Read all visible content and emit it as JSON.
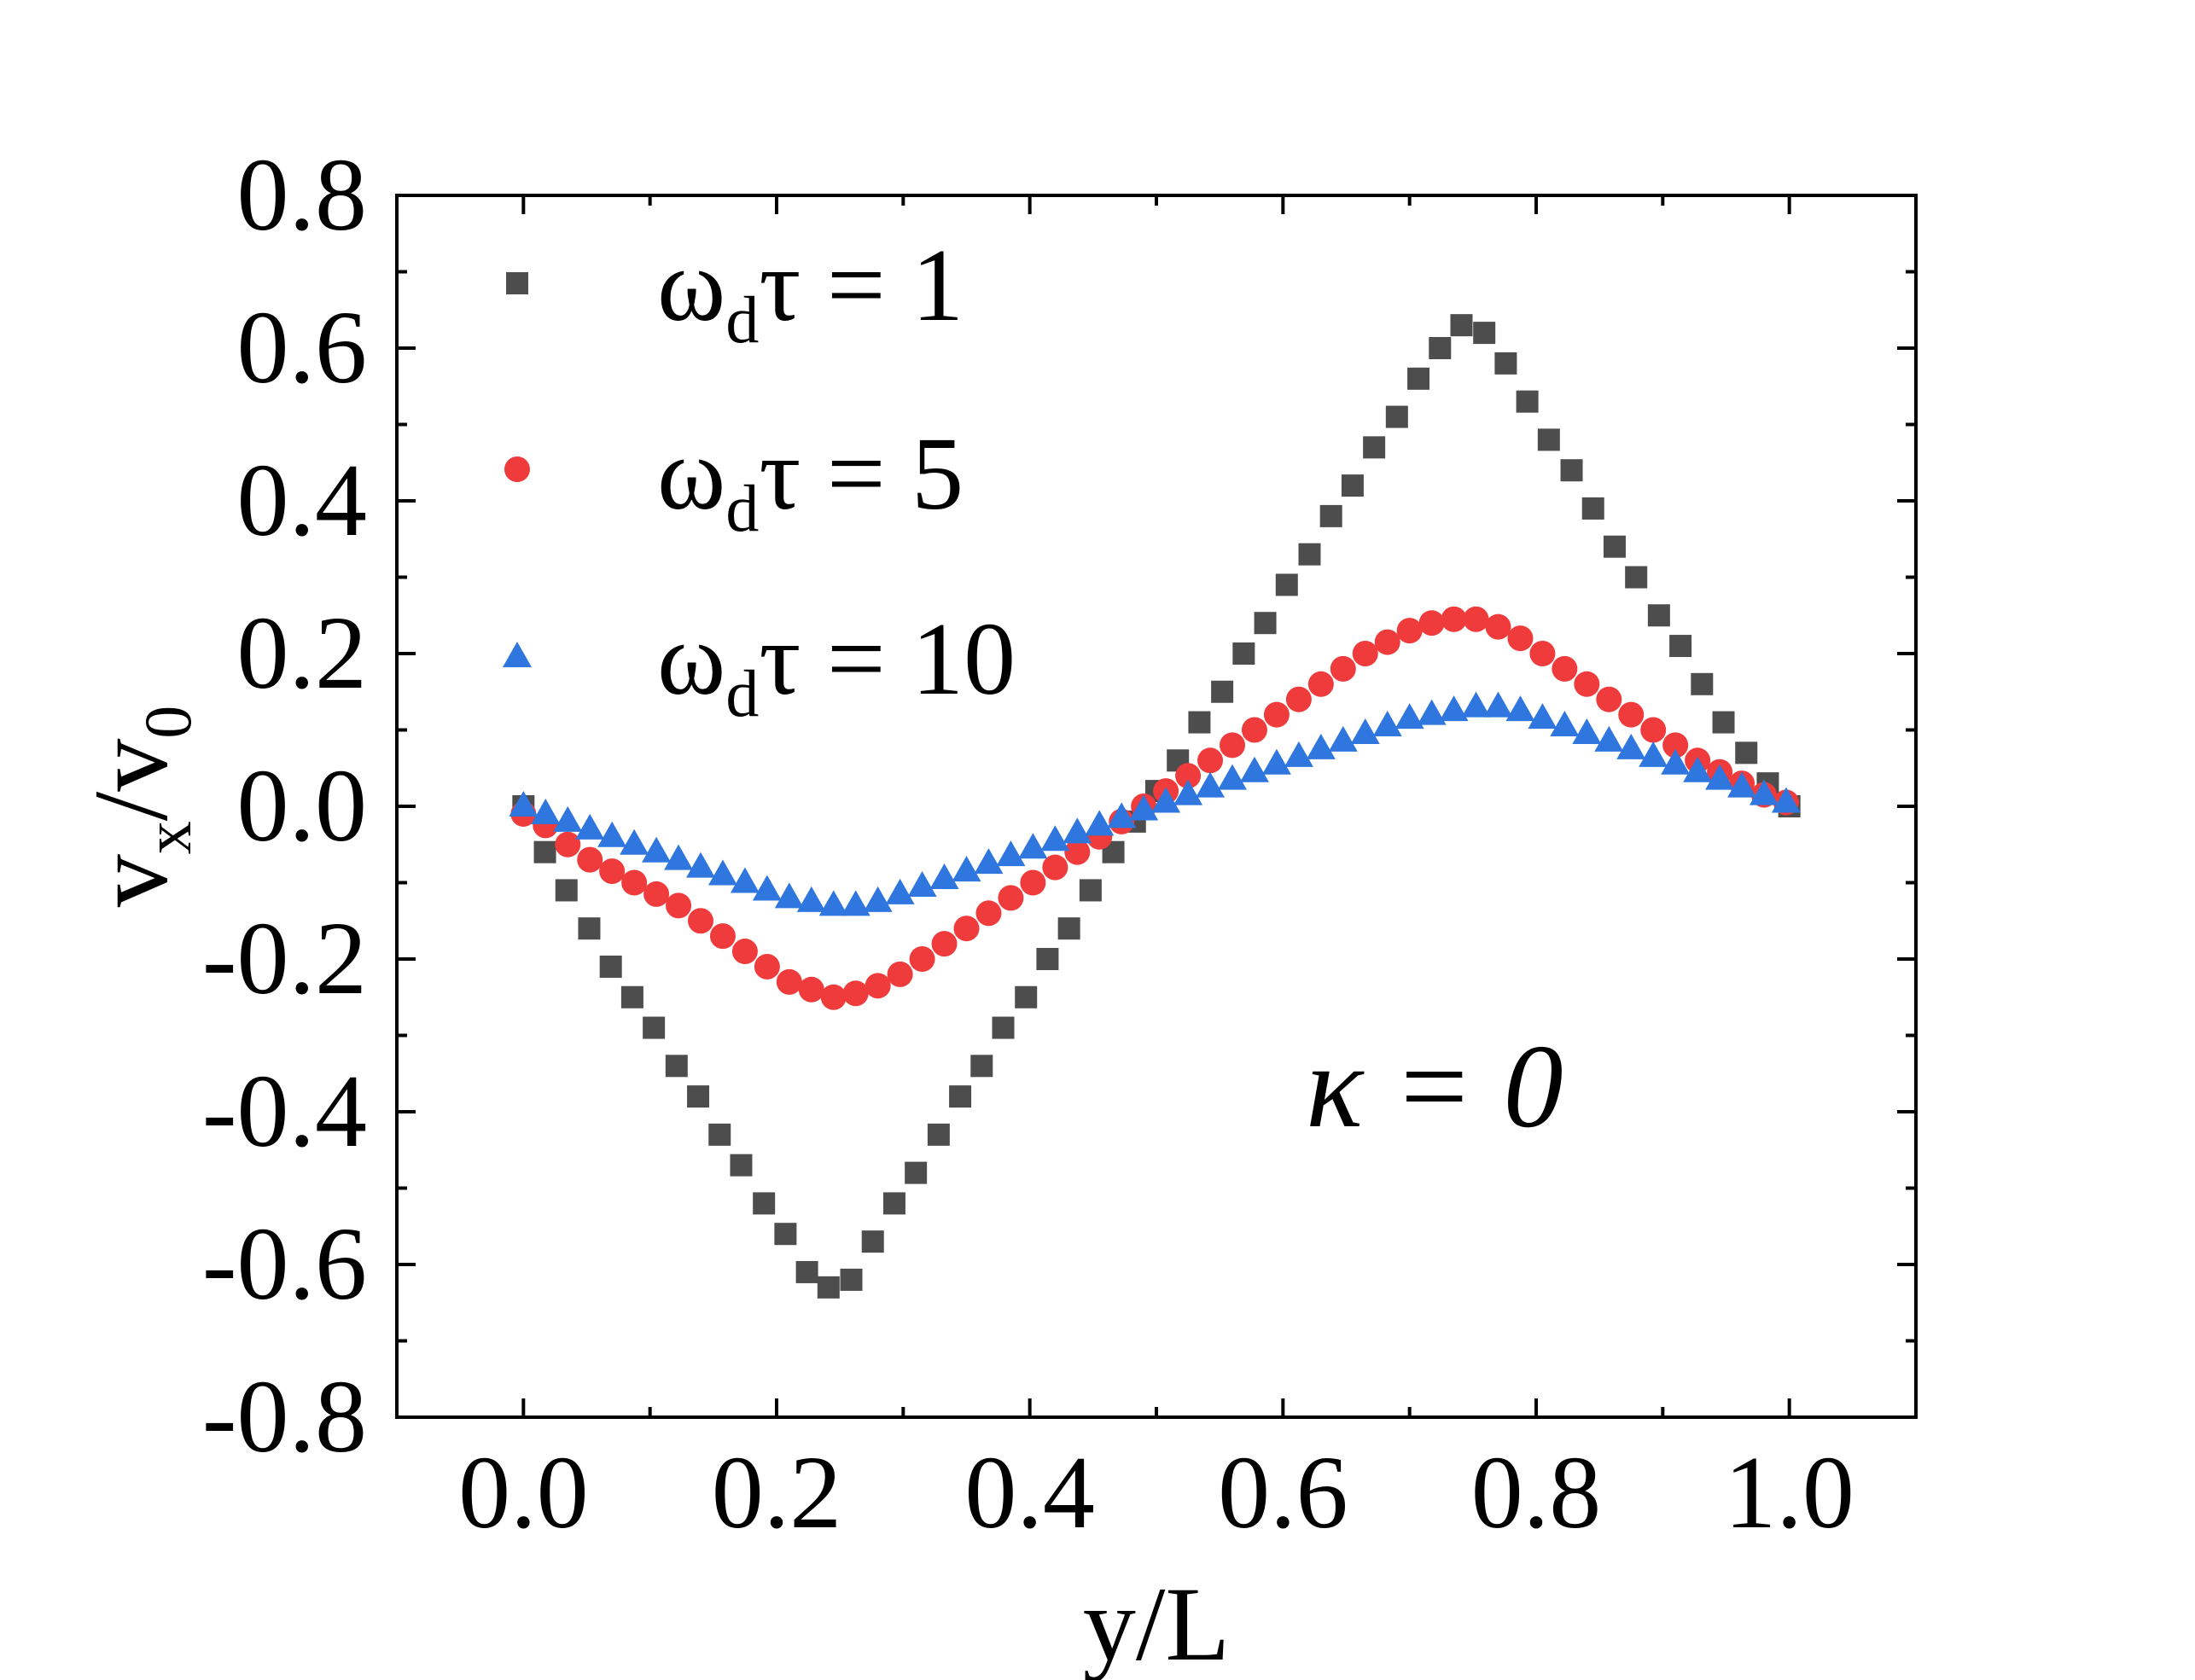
{
  "chart_data": {
    "type": "scatter",
    "title": "",
    "xlabel": "y/L",
    "ylabel": "v_x/v_0",
    "ylabel_parts": {
      "v1": "v",
      "sub1": "x",
      "slash": "/",
      "v2": "v",
      "sub2": "0"
    },
    "xlim": [
      -0.1,
      1.1
    ],
    "ylim": [
      -0.8,
      0.8
    ],
    "xticks": [
      "0.0",
      "0.2",
      "0.4",
      "0.6",
      "0.8",
      "1.0"
    ],
    "xtick_values": [
      0.0,
      0.2,
      0.4,
      0.6,
      0.8,
      1.0
    ],
    "yticks": [
      "0.8",
      "0.6",
      "0.4",
      "0.2",
      "0.0",
      "-0.2",
      "-0.4",
      "-0.6",
      "-0.8"
    ],
    "ytick_values": [
      0.8,
      0.6,
      0.4,
      0.2,
      0.0,
      -0.2,
      -0.4,
      -0.6,
      -0.8
    ],
    "grid": false,
    "legend_position": "top-left",
    "annotation": "κ = 0",
    "x": [
      0.0,
      0.0175,
      0.035,
      0.0525,
      0.07,
      0.0875,
      0.105,
      0.1225,
      0.14,
      0.1575,
      0.175,
      0.1925,
      0.21,
      0.2275,
      0.245,
      0.2625,
      0.28,
      0.2975,
      0.315,
      0.3325,
      0.35,
      0.3675,
      0.385,
      0.4025,
      0.42,
      0.4375,
      0.455,
      0.4725,
      0.49,
      0.5075,
      0.525,
      0.5425,
      0.56,
      0.5775,
      0.595,
      0.6125,
      0.63,
      0.6475,
      0.665,
      0.6825,
      0.7,
      0.7175,
      0.735,
      0.7525,
      0.77,
      0.7875,
      0.805,
      0.8225,
      0.84,
      0.8575,
      0.875,
      0.8925,
      0.91,
      0.9275,
      0.945,
      0.9625,
      0.98,
      0.9975
    ],
    "series": [
      {
        "name": "ω_dτ = 1",
        "label_parts": {
          "omega": "ω",
          "sub": "d",
          "rest": "τ = 1"
        },
        "marker": "square",
        "color": "#4d4d4d",
        "x": [
          0.0,
          0.017,
          0.034,
          0.052,
          0.069,
          0.086,
          0.103,
          0.121,
          0.138,
          0.155,
          0.172,
          0.19,
          0.207,
          0.224,
          0.241,
          0.259,
          0.276,
          0.293,
          0.31,
          0.328,
          0.345,
          0.362,
          0.379,
          0.397,
          0.414,
          0.431,
          0.448,
          0.466,
          0.483,
          0.5,
          0.517,
          0.534,
          0.552,
          0.569,
          0.586,
          0.603,
          0.621,
          0.638,
          0.655,
          0.672,
          0.69,
          0.707,
          0.724,
          0.741,
          0.759,
          0.776,
          0.793,
          0.81,
          0.828,
          0.845,
          0.862,
          0.879,
          0.897,
          0.914,
          0.931,
          0.948,
          0.966,
          0.983,
          1.0
        ],
        "values": [
          0.0,
          -0.06,
          -0.11,
          -0.16,
          -0.21,
          -0.25,
          -0.29,
          -0.34,
          -0.38,
          -0.43,
          -0.47,
          -0.52,
          -0.56,
          -0.61,
          -0.63,
          -0.62,
          -0.57,
          -0.52,
          -0.48,
          -0.43,
          -0.38,
          -0.34,
          -0.29,
          -0.25,
          -0.2,
          -0.16,
          -0.11,
          -0.06,
          -0.02,
          0.02,
          0.06,
          0.11,
          0.15,
          0.2,
          0.24,
          0.29,
          0.33,
          0.38,
          0.42,
          0.47,
          0.51,
          0.56,
          0.6,
          0.63,
          0.62,
          0.58,
          0.53,
          0.48,
          0.44,
          0.39,
          0.34,
          0.3,
          0.25,
          0.21,
          0.16,
          0.11,
          0.07,
          0.03,
          0.0
        ]
      },
      {
        "name": "ω_dτ = 5",
        "label_parts": {
          "omega": "ω",
          "sub": "d",
          "rest": "τ = 5"
        },
        "marker": "circle",
        "color": "#ef3b3b",
        "x": [
          0.0,
          0.0175,
          0.035,
          0.0525,
          0.07,
          0.0875,
          0.105,
          0.1225,
          0.14,
          0.1575,
          0.175,
          0.1925,
          0.21,
          0.2275,
          0.245,
          0.2625,
          0.28,
          0.2975,
          0.315,
          0.3325,
          0.35,
          0.3675,
          0.385,
          0.4025,
          0.42,
          0.4375,
          0.455,
          0.4725,
          0.49,
          0.5075,
          0.525,
          0.5425,
          0.56,
          0.5775,
          0.595,
          0.6125,
          0.63,
          0.6475,
          0.665,
          0.6825,
          0.7,
          0.7175,
          0.735,
          0.7525,
          0.77,
          0.7875,
          0.805,
          0.8225,
          0.84,
          0.8575,
          0.875,
          0.8925,
          0.91,
          0.9275,
          0.945,
          0.9625,
          0.98,
          0.9975
        ],
        "values": [
          -0.01,
          -0.025,
          -0.05,
          -0.07,
          -0.085,
          -0.1,
          -0.115,
          -0.13,
          -0.15,
          -0.17,
          -0.19,
          -0.21,
          -0.23,
          -0.24,
          -0.25,
          -0.245,
          -0.235,
          -0.22,
          -0.2,
          -0.18,
          -0.16,
          -0.14,
          -0.12,
          -0.1,
          -0.08,
          -0.06,
          -0.04,
          -0.02,
          0.0,
          0.02,
          0.04,
          0.06,
          0.08,
          0.1,
          0.12,
          0.14,
          0.16,
          0.18,
          0.2,
          0.215,
          0.23,
          0.24,
          0.245,
          0.245,
          0.235,
          0.22,
          0.2,
          0.18,
          0.16,
          0.14,
          0.12,
          0.1,
          0.08,
          0.06,
          0.045,
          0.03,
          0.015,
          0.005
        ]
      },
      {
        "name": "ω_dτ = 10",
        "label_parts": {
          "omega": "ω",
          "sub": "d",
          "rest": "τ = 10"
        },
        "marker": "triangle",
        "color": "#2f76de",
        "x": [
          0.0,
          0.0175,
          0.035,
          0.0525,
          0.07,
          0.0875,
          0.105,
          0.1225,
          0.14,
          0.1575,
          0.175,
          0.1925,
          0.21,
          0.2275,
          0.245,
          0.2625,
          0.28,
          0.2975,
          0.315,
          0.3325,
          0.35,
          0.3675,
          0.385,
          0.4025,
          0.42,
          0.4375,
          0.455,
          0.4725,
          0.49,
          0.5075,
          0.525,
          0.5425,
          0.56,
          0.5775,
          0.595,
          0.6125,
          0.63,
          0.6475,
          0.665,
          0.6825,
          0.7,
          0.7175,
          0.735,
          0.7525,
          0.77,
          0.7875,
          0.805,
          0.8225,
          0.84,
          0.8575,
          0.875,
          0.8925,
          0.91,
          0.9275,
          0.945,
          0.9625,
          0.98,
          0.9975
        ],
        "values": [
          0.0,
          -0.01,
          -0.02,
          -0.03,
          -0.04,
          -0.05,
          -0.06,
          -0.07,
          -0.08,
          -0.09,
          -0.1,
          -0.11,
          -0.12,
          -0.125,
          -0.13,
          -0.13,
          -0.125,
          -0.115,
          -0.105,
          -0.095,
          -0.085,
          -0.075,
          -0.065,
          -0.055,
          -0.045,
          -0.035,
          -0.025,
          -0.015,
          -0.005,
          0.005,
          0.015,
          0.025,
          0.035,
          0.045,
          0.055,
          0.065,
          0.075,
          0.085,
          0.095,
          0.105,
          0.115,
          0.12,
          0.125,
          0.13,
          0.13,
          0.125,
          0.115,
          0.105,
          0.095,
          0.085,
          0.075,
          0.065,
          0.055,
          0.045,
          0.035,
          0.025,
          0.015,
          0.005
        ]
      }
    ]
  }
}
